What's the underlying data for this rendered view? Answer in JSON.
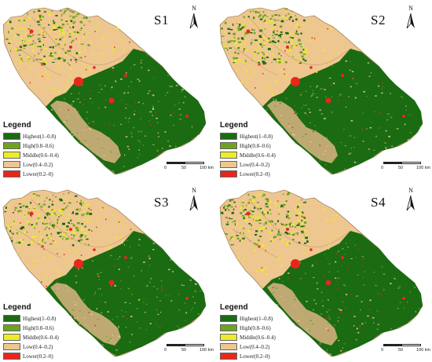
{
  "panels": [
    {
      "id": "S1",
      "title": "S1",
      "north_label": "N",
      "legend": {
        "title": "Legend"
      }
    },
    {
      "id": "S2",
      "title": "S2",
      "north_label": "N",
      "legend": {
        "title": "Legend"
      }
    },
    {
      "id": "S3",
      "title": "S3",
      "north_label": "N",
      "legend": {
        "title": "Legend"
      }
    },
    {
      "id": "S4",
      "title": "S4",
      "north_label": "N",
      "legend": {
        "title": "Legend"
      }
    }
  ],
  "legend_items": [
    {
      "label": "Highest(1–0.8)",
      "color": "#1a6b12"
    },
    {
      "label": "High(0.8–0.6)",
      "color": "#6fa31f"
    },
    {
      "label": "Middle(0.6–0.4)",
      "color": "#ecec2a"
    },
    {
      "label": "Low(0.4–0.2)",
      "color": "#eec690"
    },
    {
      "label": "Lower(0.2–0)",
      "color": "#e8261c"
    }
  ],
  "scalebar": {
    "ticks": [
      "0",
      "50",
      "100 km"
    ]
  },
  "colors": {
    "forest": "#1a6b12",
    "high": "#6fa31f",
    "middle": "#ecec2a",
    "low": "#eec690",
    "lower": "#e8261c"
  }
}
